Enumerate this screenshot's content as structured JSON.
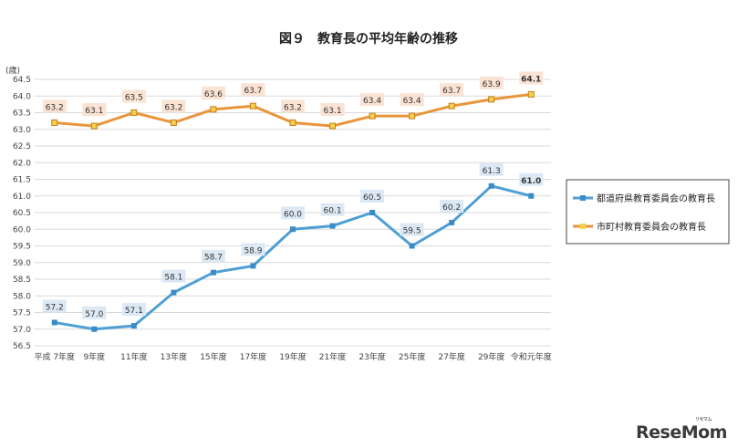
{
  "chart_data": {
    "type": "line",
    "title": "図９　教育長の平均年齢の推移",
    "ylabel": "(歳)",
    "xlabel": "",
    "ylim": [
      56.5,
      64.5
    ],
    "yticks": [
      "56.5",
      "57.0",
      "57.5",
      "58.0",
      "58.5",
      "59.0",
      "59.5",
      "60.0",
      "60.5",
      "61.0",
      "61.5",
      "62.0",
      "62.5",
      "63.0",
      "63.5",
      "64.0",
      "64.5"
    ],
    "grid": true,
    "legend_position": "right",
    "categories": [
      "平成 7年度",
      "9年度",
      "11年度",
      "13年度",
      "15年度",
      "17年度",
      "19年度",
      "21年度",
      "23年度",
      "25年度",
      "27年度",
      "29年度",
      "令和元年度"
    ],
    "series": [
      {
        "name": "都道府県教育委員会の教育長",
        "color": "#4f9fd4",
        "marker_color": "#3a8cc7",
        "label_bg": "#dce9f5",
        "values": [
          57.2,
          57.0,
          57.1,
          58.1,
          58.7,
          58.9,
          60.0,
          60.1,
          60.5,
          59.5,
          60.2,
          61.3,
          61.0
        ],
        "labels": [
          "57.2",
          "57.0",
          "57.1",
          "58.1",
          "58.7",
          "58.9",
          "60.0",
          "60.1",
          "60.5",
          "59.5",
          "60.2",
          "61.3",
          "61.0"
        ]
      },
      {
        "name": "市町村教育委員会の教育長",
        "color": "#e8963c",
        "marker_color": "#f2d24a",
        "label_bg": "#fbe3d4",
        "values": [
          63.2,
          63.1,
          63.5,
          63.2,
          63.6,
          63.7,
          63.2,
          63.1,
          63.4,
          63.4,
          63.7,
          63.9,
          64.05
        ],
        "labels": [
          "63.2",
          "63.1",
          "63.5",
          "63.2",
          "63.6",
          "63.7",
          "63.2",
          "63.1",
          "63.4",
          "63.4",
          "63.7",
          "63.9",
          "64.1"
        ]
      }
    ]
  },
  "watermark": {
    "text": "ReseMom",
    "small_text": "リセマム"
  }
}
